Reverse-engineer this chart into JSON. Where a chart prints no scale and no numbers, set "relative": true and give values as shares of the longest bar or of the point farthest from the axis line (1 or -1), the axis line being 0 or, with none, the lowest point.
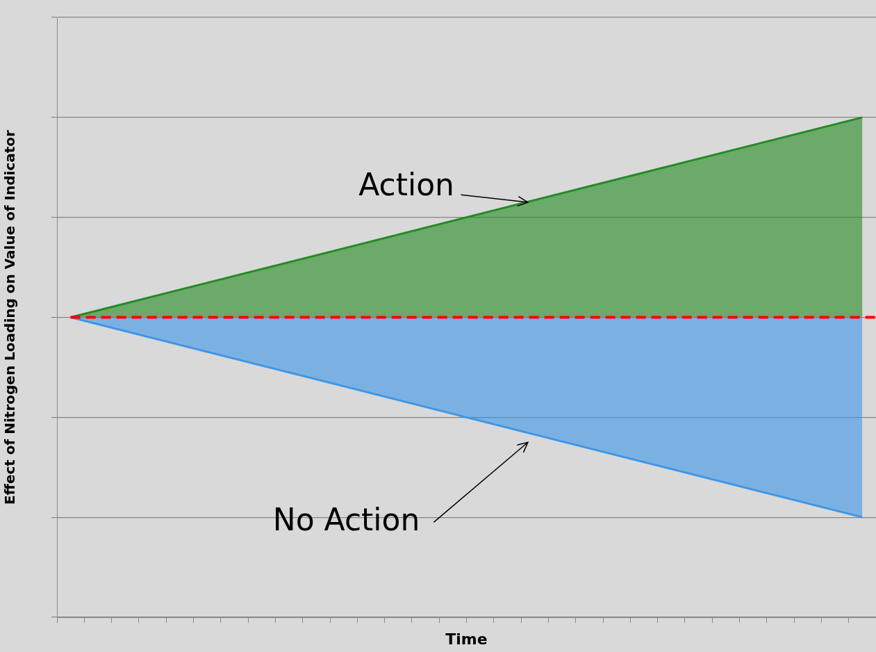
{
  "chart_data": {
    "type": "area",
    "relative": true,
    "xlabel": "Time",
    "ylabel": "Effect of Nitrogen Loading on Value of Indicator",
    "categories": [
      null,
      null,
      null,
      null,
      null,
      null,
      null,
      null,
      null,
      null,
      null,
      null,
      null,
      null,
      null,
      null,
      null,
      null,
      null,
      null,
      null,
      null,
      null,
      null,
      null,
      null,
      null,
      null,
      null,
      null
    ],
    "series": [
      {
        "name": "Action",
        "color": "#228b22",
        "values": [
          0.6,
          null,
          null,
          null,
          null,
          null,
          null,
          null,
          null,
          null,
          null,
          null,
          null,
          null,
          null,
          null,
          null,
          null,
          null,
          null,
          null,
          null,
          null,
          null,
          null,
          null,
          null,
          null,
          null,
          1.0
        ]
      },
      {
        "name": "No Action",
        "color": "#3c96e8",
        "values": [
          0.6,
          null,
          null,
          null,
          null,
          null,
          null,
          null,
          null,
          null,
          null,
          null,
          null,
          null,
          null,
          null,
          null,
          null,
          null,
          null,
          null,
          null,
          null,
          null,
          null,
          null,
          null,
          null,
          null,
          0.2
        ]
      }
    ],
    "ref_lines": [
      {
        "axis": "y",
        "value": 0.6,
        "color": "#ff0000",
        "line_style": "dashed"
      }
    ],
    "grid": "y",
    "legend": false
  }
}
